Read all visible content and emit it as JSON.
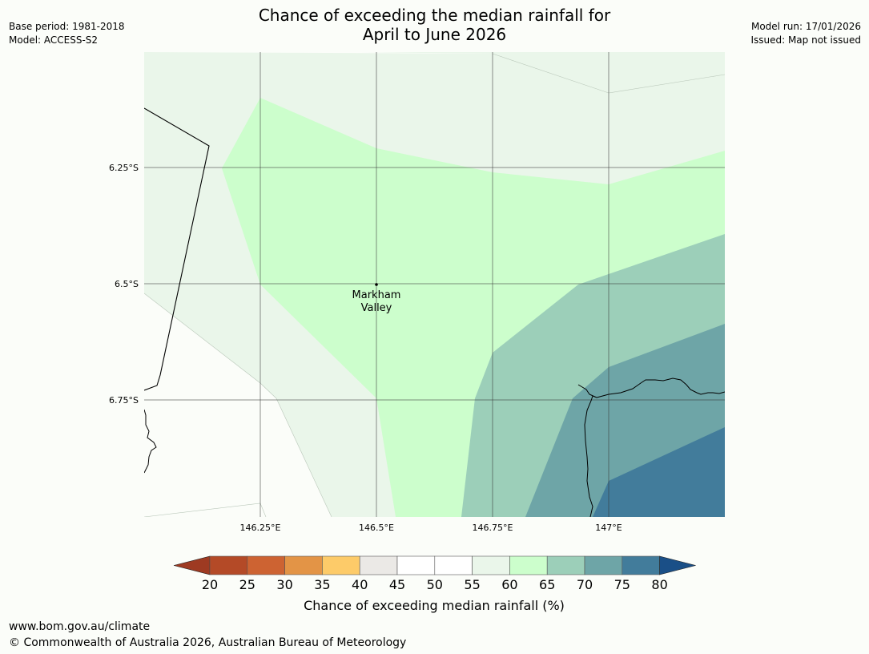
{
  "header": {
    "title_line1": "Chance of exceeding the median rainfall for",
    "title_line2": "April to June 2026",
    "base_period": "Base period: 1981-2018",
    "model": "Model: ACCESS-S2",
    "model_run": "Model run: 17/01/2026",
    "issued": "Issued: Map not issued"
  },
  "map": {
    "lon_labels": [
      "146.25°E",
      "146.5°E",
      "146.75°E",
      "147°E"
    ],
    "lat_labels": [
      "6.25°S",
      "6.5°S",
      "6.75°S"
    ],
    "place": {
      "name_line1": "Markham",
      "name_line2": "Valley"
    }
  },
  "colorbar": {
    "label": "Chance of exceeding median rainfall (%)",
    "ticks": [
      "20",
      "25",
      "30",
      "35",
      "40",
      "45",
      "50",
      "55",
      "60",
      "65",
      "70",
      "75",
      "80"
    ],
    "colors": [
      "#9e3a22",
      "#b44a27",
      "#cd6332",
      "#e39446",
      "#fdcb69",
      "#ebe9e6",
      "#ffffff",
      "#ffffff",
      "#eaf6ea",
      "#ccfecc",
      "#9ccfb9",
      "#6ea5a7",
      "#427c9b",
      "#1a4f87"
    ]
  },
  "footer": {
    "url": "www.bom.gov.au/climate",
    "copyright": "© Commonwealth of Australia 2026, Australian Bureau of Meteorology"
  }
}
